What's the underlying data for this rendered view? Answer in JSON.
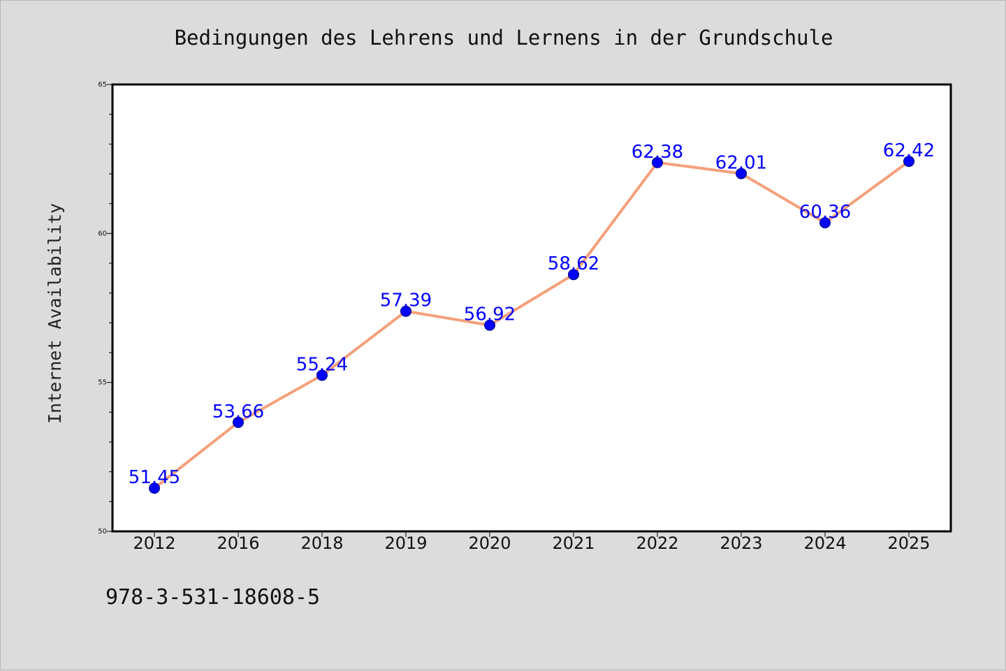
{
  "chart_data": {
    "type": "line",
    "title": "Bedingungen des Lehrens und Lernens in der Grundschule",
    "xlabel": "",
    "ylabel": "Internet Availability",
    "categories": [
      "2012",
      "2016",
      "2018",
      "2019",
      "2020",
      "2021",
      "2022",
      "2023",
      "2024",
      "2025"
    ],
    "series": [
      {
        "values": [
          51.45,
          53.66,
          55.24,
          57.39,
          56.92,
          58.62,
          62.38,
          62.01,
          60.36,
          62.42
        ],
        "labels": [
          "51.45",
          "53.66",
          "55.24",
          "57.39",
          "56.92",
          "58.62",
          "62.38",
          "62.01",
          "60.36",
          "62.42"
        ]
      }
    ],
    "ylim": [
      50,
      65
    ],
    "yticks": [
      50,
      55,
      60,
      65
    ],
    "ytick_labels": [
      "50",
      "55",
      "60",
      "65"
    ],
    "grid": false,
    "colors": {
      "line": "#f4a07a",
      "marker": "#0000ff",
      "marker_edge": "#00007a",
      "data_label": "#0000ff",
      "background": "#dcdcdc",
      "plot_bg": "#ffffff"
    }
  },
  "footer": {
    "isbn": "978-3-531-18608-5"
  }
}
